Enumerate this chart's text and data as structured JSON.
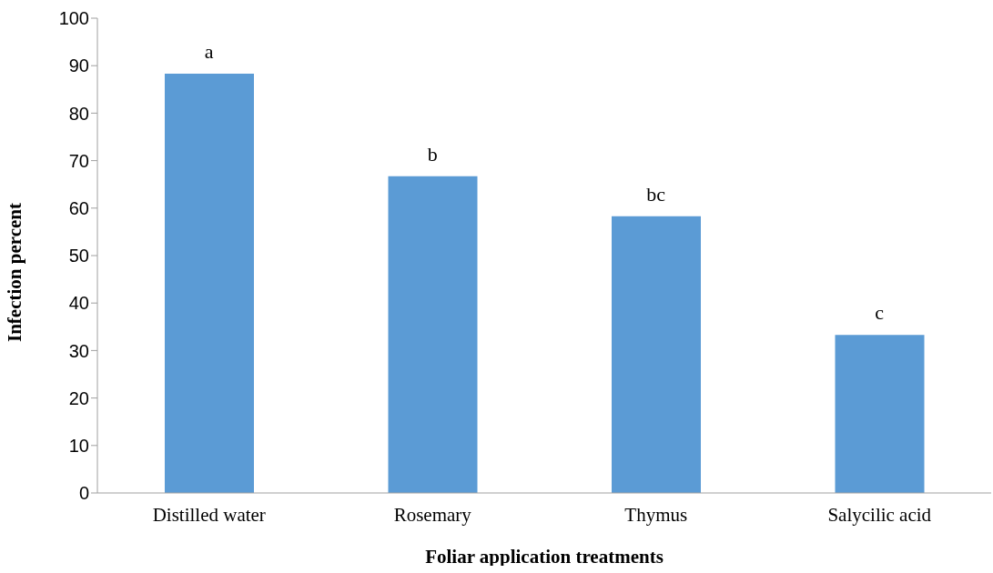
{
  "chart_data": {
    "type": "bar",
    "xlabel": "Foliar application treatments",
    "ylabel": "Infection percent",
    "categories": [
      "Distilled water",
      "Rosemary",
      "Thymus",
      "Salycilic acid"
    ],
    "values": [
      88.3,
      66.7,
      58.3,
      33.3
    ],
    "color": "#5b9bd5",
    "ylim": [
      0,
      100
    ],
    "yticks": [
      0,
      10,
      20,
      30,
      40,
      50,
      60,
      70,
      80,
      90,
      100
    ],
    "grid": false,
    "legend": false,
    "annotations": [
      {
        "text": "a",
        "x": "Distilled water",
        "y": 88.3
      },
      {
        "text": "b",
        "x": "Rosemary",
        "y": 66.7
      },
      {
        "text": "bc",
        "x": "Thymus",
        "y": 58.3
      },
      {
        "text": "c",
        "x": "Salycilic acid",
        "y": 33.3
      }
    ]
  }
}
